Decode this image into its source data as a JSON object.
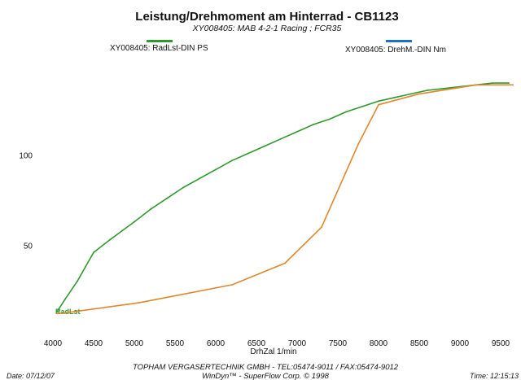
{
  "chart_data": {
    "type": "line",
    "title": "Leistung/Drehmoment am Hinterrad - CB1123",
    "subtitle": "XY008405: MAB 4-2-1 Racing ; FCR35",
    "xlabel": "DrhZal 1/min",
    "ylabel": "",
    "xlim": [
      3850,
      9750
    ],
    "ylim": [
      0,
      150
    ],
    "x_ticks": [
      4000,
      4500,
      5000,
      5500,
      6000,
      6500,
      7000,
      7500,
      8000,
      8500,
      9000,
      9500
    ],
    "y_ticks": [
      50,
      100
    ],
    "grid": false,
    "legend_position": "top",
    "series": [
      {
        "name": "XY008405: RadLst-DIN PS",
        "color": "#2e9a2e",
        "end_label": "RadLst",
        "x": [
          4050,
          4150,
          4300,
          4400,
          4500,
          4700,
          4850,
          5000,
          5200,
          5400,
          5600,
          5800,
          6000,
          6200,
          6400,
          6600,
          6800,
          7000,
          7200,
          7400,
          7600,
          7800,
          8000,
          8200,
          8400,
          8600,
          8800,
          9000,
          9200,
          9400,
          9600
        ],
        "values": [
          13,
          20,
          30,
          38,
          46,
          53,
          58,
          63,
          70,
          76,
          82,
          87,
          92,
          97,
          101,
          105,
          109,
          113,
          117,
          120,
          124,
          127,
          130,
          132,
          134,
          136,
          137,
          138,
          139,
          140,
          140
        ]
      },
      {
        "name": "XY008405: DrehM.-DIN Nm",
        "color": "#1a73c9",
        "x": [
          4050,
          4250,
          5050,
          6200,
          6850,
          7300,
          7750,
          8000,
          8500,
          9200,
          9650
        ],
        "values": [
          12,
          13,
          18,
          28,
          40,
          60,
          106,
          128,
          134,
          139,
          139
        ]
      }
    ]
  },
  "footer": {
    "company": "TOPHAM VERGASERTECHNIK GMBH - TEL:05474-9011 / FAX:05474-9012",
    "software": "WinDyn™ - SuperFlow Corp. © 1998",
    "date": "Date: 07/12/07",
    "time": "Time: 12:15:13"
  }
}
